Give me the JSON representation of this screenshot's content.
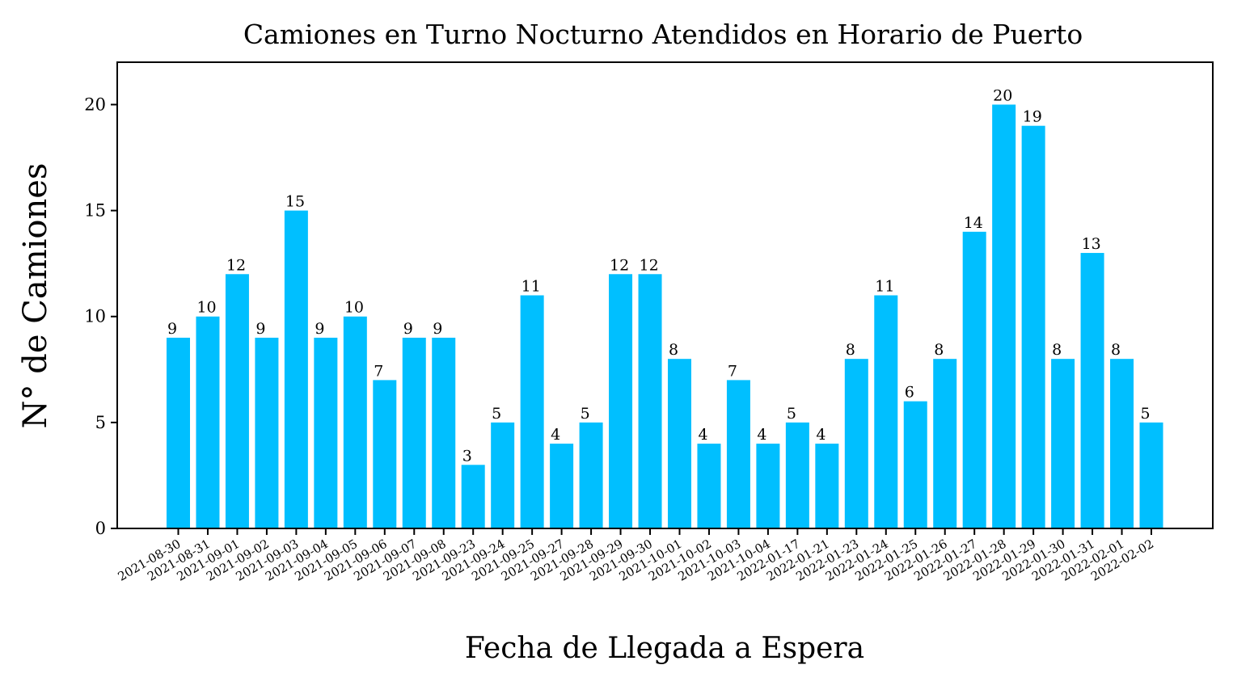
{
  "chart_data": {
    "type": "bar",
    "title": "Camiones en Turno Nocturno Atendidos en Horario de Puerto",
    "xlabel": "Fecha de Llegada a Espera",
    "ylabel": "N° de Camiones",
    "ylim": [
      0,
      22
    ],
    "yticks": [
      0,
      5,
      10,
      15,
      20
    ],
    "grid": false,
    "bar_color": "#00BFFF",
    "categories": [
      "2021-08-30",
      "2021-08-31",
      "2021-09-01",
      "2021-09-02",
      "2021-09-03",
      "2021-09-04",
      "2021-09-05",
      "2021-09-06",
      "2021-09-07",
      "2021-09-08",
      "2021-09-23",
      "2021-09-24",
      "2021-09-25",
      "2021-09-27",
      "2021-09-28",
      "2021-09-29",
      "2021-09-30",
      "2021-10-01",
      "2021-10-02",
      "2021-10-03",
      "2021-10-04",
      "2022-01-17",
      "2022-01-21",
      "2022-01-23",
      "2022-01-24",
      "2022-01-25",
      "2022-01-26",
      "2022-01-27",
      "2022-01-28",
      "2022-01-29",
      "2022-01-30",
      "2022-01-31",
      "2022-02-01",
      "2022-02-02"
    ],
    "values": [
      9,
      10,
      12,
      9,
      15,
      9,
      10,
      7,
      9,
      9,
      3,
      5,
      11,
      4,
      5,
      12,
      12,
      8,
      4,
      7,
      4,
      5,
      4,
      8,
      11,
      6,
      8,
      14,
      20,
      19,
      8,
      13,
      8,
      5
    ]
  }
}
